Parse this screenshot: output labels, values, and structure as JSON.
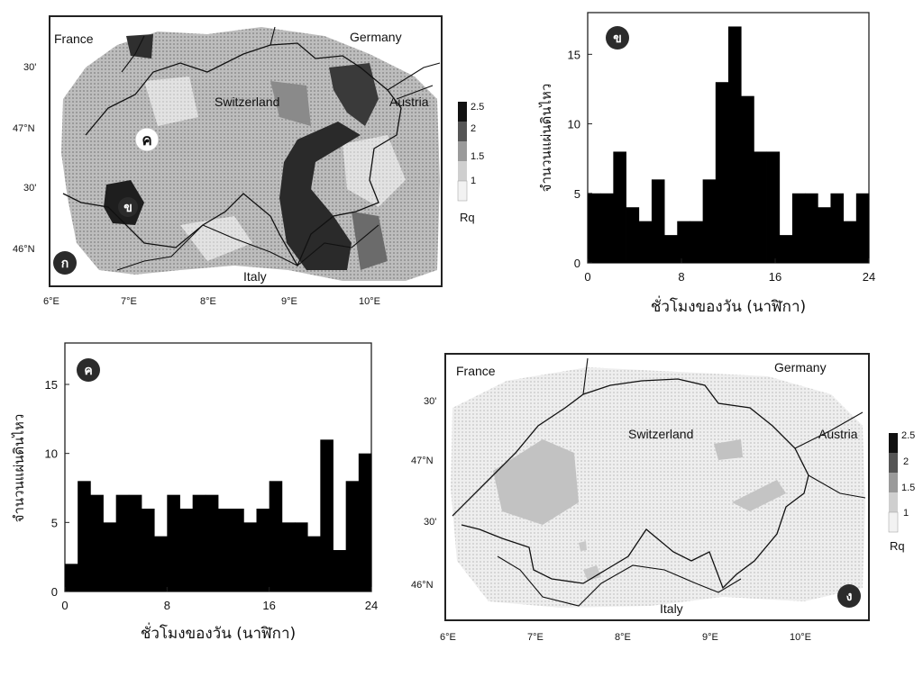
{
  "chart_data": [
    {
      "type": "heatmap",
      "panel_badge": "ก",
      "region_badges": [
        "ข",
        "ค"
      ],
      "countries": [
        "France",
        "Germany",
        "Switzerland",
        "Austria",
        "Italy"
      ],
      "lon_ticks": [
        "6°E",
        "7°E",
        "8°E",
        "9°E",
        "10°E"
      ],
      "lat_ticks": [
        "30'",
        "47°N",
        "30'",
        "46°N"
      ],
      "colorbar": {
        "label": "Rq",
        "ticks": [
          "2.5",
          "2",
          "1.5",
          "1"
        ],
        "range": [
          0.8,
          2.5
        ]
      }
    },
    {
      "type": "bar",
      "panel_badge": "ข",
      "xlabel": "ชั่วโมงของวัน (นาฬิกา)",
      "ylabel": "จำนวนแผ่นดินไหว",
      "x_ticks": [
        "0",
        "8",
        "16",
        "24"
      ],
      "y_ticks": [
        "0",
        "5",
        "10",
        "15"
      ],
      "xlim": [
        0,
        24
      ],
      "ylim": [
        0,
        18
      ],
      "values": [
        5,
        5,
        8,
        4,
        3,
        6,
        2,
        3,
        3,
        6,
        13,
        17,
        12,
        8,
        8,
        2,
        5,
        5,
        4,
        5,
        3,
        5
      ]
    },
    {
      "type": "bar",
      "panel_badge": "ค",
      "xlabel": "ชั่วโมงของวัน (นาฬิกา)",
      "ylabel": "จำนวนแผ่นดินไหว",
      "x_ticks": [
        "0",
        "8",
        "16",
        "24"
      ],
      "y_ticks": [
        "0",
        "5",
        "10",
        "15"
      ],
      "xlim": [
        0,
        24
      ],
      "ylim": [
        0,
        18
      ],
      "values": [
        2,
        8,
        7,
        5,
        7,
        7,
        6,
        4,
        7,
        6,
        7,
        7,
        6,
        6,
        5,
        6,
        8,
        5,
        5,
        4,
        11,
        3,
        8,
        10
      ]
    },
    {
      "type": "heatmap",
      "panel_badge": "ง",
      "countries": [
        "France",
        "Germany",
        "Switzerland",
        "Austria",
        "Italy"
      ],
      "lon_ticks": [
        "6°E",
        "7°E",
        "8°E",
        "9°E",
        "10°E"
      ],
      "lat_ticks": [
        "30'",
        "47°N",
        "30'",
        "46°N"
      ],
      "colorbar": {
        "label": "Rq",
        "ticks": [
          "2.5",
          "2",
          "1.5",
          "1"
        ],
        "range": [
          0.8,
          2.5
        ]
      }
    }
  ]
}
